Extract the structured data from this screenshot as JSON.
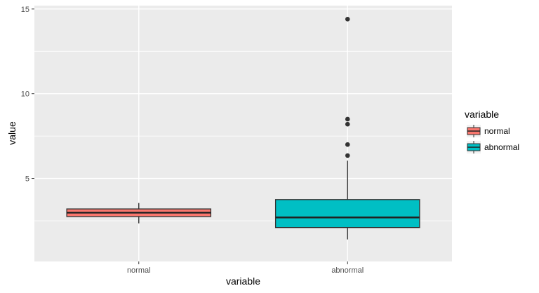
{
  "chart_data": {
    "type": "boxplot",
    "xlabel": "variable",
    "ylabel": "value",
    "categories": [
      "normal",
      "abnormal"
    ],
    "ylim": [
      0.1,
      15.2
    ],
    "yticks": [
      5,
      10,
      15
    ],
    "grid": true,
    "legend": {
      "title": "variable",
      "placement": "right",
      "entries": [
        "normal",
        "abnormal"
      ]
    },
    "colors": {
      "normal": "#F8766D",
      "abnormal": "#00BFC4",
      "panel": "#EBEBEB",
      "grid": "#FFFFFF"
    },
    "boxes": [
      {
        "category": "normal",
        "min": 2.35,
        "q1": 2.75,
        "median": 2.98,
        "q3": 3.2,
        "max": 3.55,
        "outliers": []
      },
      {
        "category": "abnormal",
        "min": 1.4,
        "q1": 2.1,
        "median": 2.7,
        "q3": 3.75,
        "max": 6.05,
        "outliers": [
          6.35,
          7.0,
          8.2,
          8.5,
          14.4
        ]
      }
    ]
  }
}
